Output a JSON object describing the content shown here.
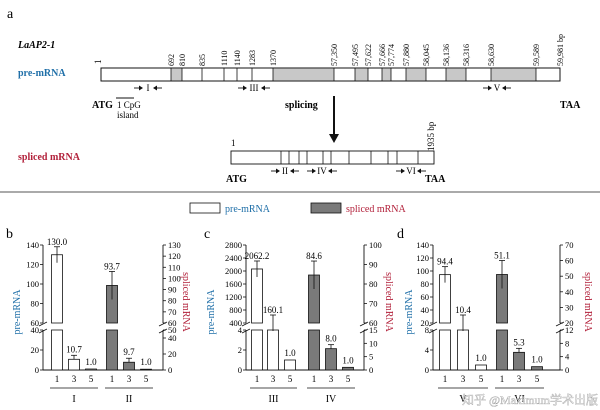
{
  "panel_a": {
    "letter": "a",
    "gene": "LaAP2-1",
    "pre_label": "pre-mRNA",
    "spliced_label": "spliced mRNA",
    "arrow_label": "splicing",
    "start_pos": "1",
    "positions": [
      "692",
      "810",
      "835",
      "1110",
      "1140",
      "1283",
      "1370",
      "57,350",
      "57,495",
      "57,622",
      "57,666",
      "57,774",
      "57,880",
      "58,045",
      "58,136",
      "58,316",
      "58,630",
      "59,589",
      "59,981 bp"
    ],
    "atg": "ATG",
    "taa": "TAA",
    "cpg_line1": "1 CpG",
    "cpg_line2": "island",
    "primers_pre": [
      "I",
      "III",
      "V"
    ],
    "primers_spliced": [
      "II",
      "IV",
      "VI"
    ],
    "spliced_start": "1",
    "spliced_end": "1935 bp"
  },
  "legend": {
    "pre": "pre-mRNA",
    "spliced": "spliced mRNA"
  },
  "colors": {
    "pre_text": "#1f6fa8",
    "spliced_text": "#b2203a",
    "exon_fill": "#c8c8c8",
    "bar_fill": "#7a7a7a"
  },
  "watermark": "知乎 @Maximum学术出版",
  "chart_data": [
    {
      "panel": "b",
      "type": "bar",
      "categories": [
        "1",
        "3",
        "5"
      ],
      "groups": [
        "I",
        "II"
      ],
      "ylabel_left": "pre-mRNA",
      "ylabel_right": "spliced mRNA",
      "left_ticks_upper": [
        60,
        80,
        100,
        120,
        140
      ],
      "left_ticks_lower": [
        0,
        20,
        40
      ],
      "right_ticks_upper": [
        60,
        70,
        80,
        90,
        100,
        110,
        120,
        130
      ],
      "right_ticks_lower": [
        0,
        20,
        40,
        50
      ],
      "series": [
        {
          "name": "pre-mRNA",
          "values": [
            130.0,
            10.7,
            1.0
          ],
          "labels": [
            "130.0",
            "10.7",
            "1.0"
          ]
        },
        {
          "name": "spliced mRNA",
          "values": [
            93.7,
            9.7,
            1.0
          ],
          "labels": [
            "93.7",
            "9.7",
            "1.0"
          ]
        }
      ]
    },
    {
      "panel": "c",
      "type": "bar",
      "categories": [
        "1",
        "3",
        "5"
      ],
      "groups": [
        "III",
        "IV"
      ],
      "ylabel_left": "pre-mRNA",
      "ylabel_right": "spliced mRNA",
      "left_ticks_upper": [
        400,
        800,
        1200,
        1600,
        2000,
        2400,
        2800
      ],
      "left_ticks_lower": [
        0,
        2,
        4
      ],
      "right_ticks_upper": [
        60,
        70,
        80,
        90,
        100
      ],
      "right_ticks_lower": [
        0,
        5,
        10,
        15
      ],
      "series": [
        {
          "name": "pre-mRNA",
          "values": [
            2062.2,
            160.1,
            1.0
          ],
          "labels": [
            "2062.2",
            "160.1",
            "1.0"
          ]
        },
        {
          "name": "spliced mRNA",
          "values": [
            84.6,
            8.0,
            1.0
          ],
          "labels": [
            "84.6",
            "8.0",
            "1.0"
          ]
        }
      ]
    },
    {
      "panel": "d",
      "type": "bar",
      "categories": [
        "1",
        "3",
        "5"
      ],
      "groups": [
        "V",
        "VI"
      ],
      "ylabel_left": "pre-mRNA",
      "ylabel_right": "spliced mRNA",
      "left_ticks_upper": [
        20,
        40,
        60,
        80,
        100,
        120,
        140
      ],
      "left_ticks_lower": [
        0,
        4,
        8
      ],
      "right_ticks_upper": [
        20,
        30,
        40,
        50,
        60,
        70
      ],
      "right_ticks_lower": [
        0,
        4,
        8,
        12
      ],
      "series": [
        {
          "name": "pre-mRNA",
          "values": [
            94.4,
            10.4,
            1.0
          ],
          "labels": [
            "94.4",
            "10.4",
            "1.0"
          ]
        },
        {
          "name": "spliced mRNA",
          "values": [
            51.1,
            5.3,
            1.0
          ],
          "labels": [
            "51.1",
            "5.3",
            "1.0"
          ]
        }
      ]
    }
  ]
}
